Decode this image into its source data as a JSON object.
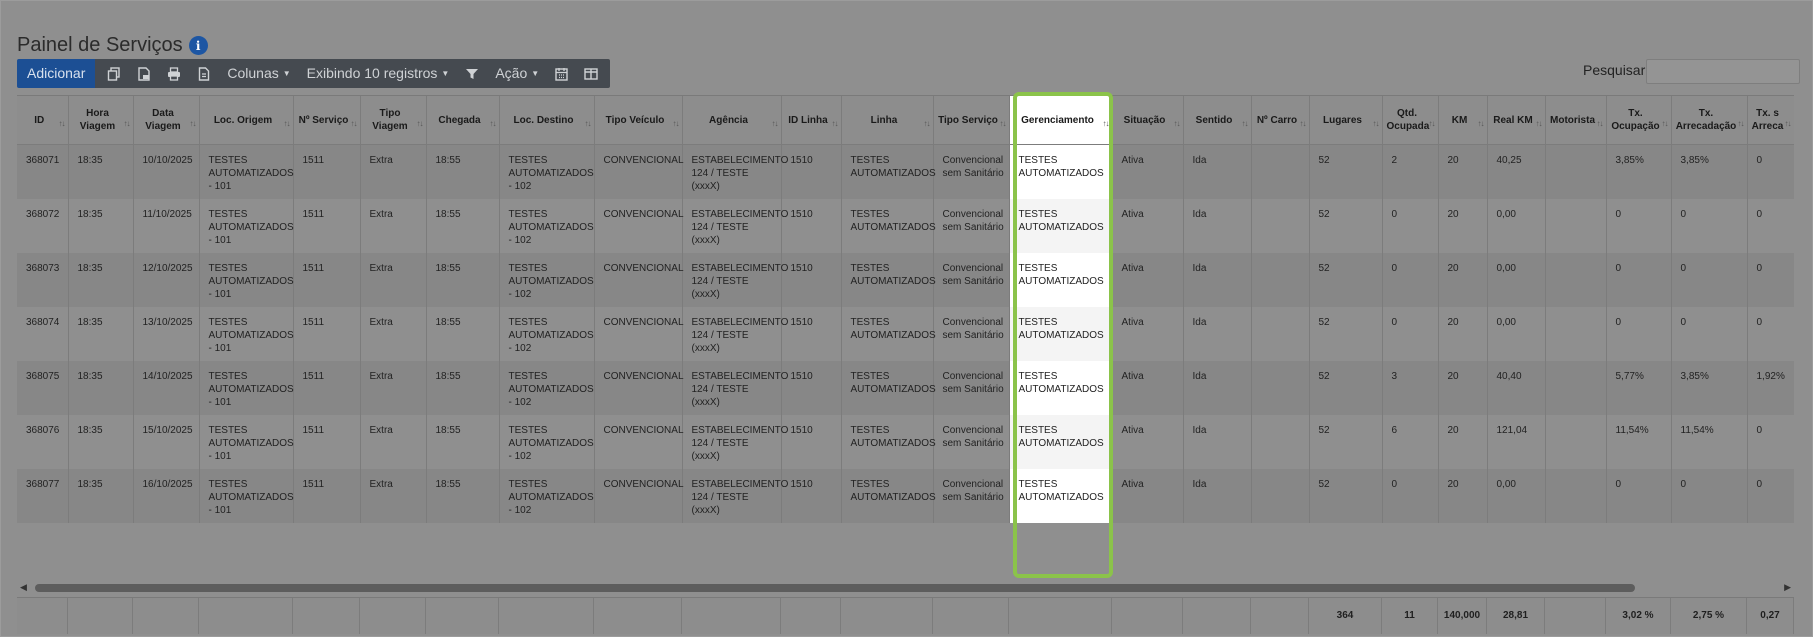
{
  "page": {
    "title": "Painel de Serviços",
    "search_label": "Pesquisar",
    "search_value": ""
  },
  "toolbar": {
    "add_label": "Adicionar",
    "columns_label": "Colunas",
    "showing_label": "Exibindo 10 registros",
    "action_label": "Ação"
  },
  "colors": {
    "highlight": "#8bc34a",
    "primary": "#1c4f94"
  },
  "table": {
    "columns": [
      "ID",
      "Hora Viagem",
      "Data Viagem",
      "Loc. Origem",
      "Nº Serviço",
      "Tipo Viagem",
      "Chegada",
      "Loc. Destino",
      "Tipo Veículo",
      "Agência",
      "ID Linha",
      "Linha",
      "Tipo Serviço",
      "Gerenciamento",
      "Situação",
      "Sentido",
      "Nº Carro",
      "Lugares",
      "Qtd. Ocupada",
      "KM",
      "Real KM",
      "Motorista",
      "Tx. Ocupação",
      "Tx. Arrecadação",
      "Tx. s Arreca"
    ],
    "rows": [
      [
        "368071",
        "18:35",
        "10/10/2025",
        "TESTES AUTOMATIZADOS - 101",
        "1511",
        "Extra",
        "18:55",
        "TESTES AUTOMATIZADOS - 102",
        "CONVENCIONAL",
        "ESTABELECIMENTO 124 / TESTE (xxxX)",
        "1510",
        "TESTES AUTOMATIZADOS",
        "Convencional sem Sanitário",
        "TESTES AUTOMATIZADOS",
        "Ativa",
        "Ida",
        "",
        "52",
        "2",
        "20",
        "40,25",
        "",
        "3,85%",
        "3,85%",
        "0"
      ],
      [
        "368072",
        "18:35",
        "11/10/2025",
        "TESTES AUTOMATIZADOS - 101",
        "1511",
        "Extra",
        "18:55",
        "TESTES AUTOMATIZADOS - 102",
        "CONVENCIONAL",
        "ESTABELECIMENTO 124 / TESTE (xxxX)",
        "1510",
        "TESTES AUTOMATIZADOS",
        "Convencional sem Sanitário",
        "TESTES AUTOMATIZADOS",
        "Ativa",
        "Ida",
        "",
        "52",
        "0",
        "20",
        "0,00",
        "",
        "0",
        "0",
        "0"
      ],
      [
        "368073",
        "18:35",
        "12/10/2025",
        "TESTES AUTOMATIZADOS - 101",
        "1511",
        "Extra",
        "18:55",
        "TESTES AUTOMATIZADOS - 102",
        "CONVENCIONAL",
        "ESTABELECIMENTO 124 / TESTE (xxxX)",
        "1510",
        "TESTES AUTOMATIZADOS",
        "Convencional sem Sanitário",
        "TESTES AUTOMATIZADOS",
        "Ativa",
        "Ida",
        "",
        "52",
        "0",
        "20",
        "0,00",
        "",
        "0",
        "0",
        "0"
      ],
      [
        "368074",
        "18:35",
        "13/10/2025",
        "TESTES AUTOMATIZADOS - 101",
        "1511",
        "Extra",
        "18:55",
        "TESTES AUTOMATIZADOS - 102",
        "CONVENCIONAL",
        "ESTABELECIMENTO 124 / TESTE (xxxX)",
        "1510",
        "TESTES AUTOMATIZADOS",
        "Convencional sem Sanitário",
        "TESTES AUTOMATIZADOS",
        "Ativa",
        "Ida",
        "",
        "52",
        "0",
        "20",
        "0,00",
        "",
        "0",
        "0",
        "0"
      ],
      [
        "368075",
        "18:35",
        "14/10/2025",
        "TESTES AUTOMATIZADOS - 101",
        "1511",
        "Extra",
        "18:55",
        "TESTES AUTOMATIZADOS - 102",
        "CONVENCIONAL",
        "ESTABELECIMENTO 124 / TESTE (xxxX)",
        "1510",
        "TESTES AUTOMATIZADOS",
        "Convencional sem Sanitário",
        "TESTES AUTOMATIZADOS",
        "Ativa",
        "Ida",
        "",
        "52",
        "3",
        "20",
        "40,40",
        "",
        "5,77%",
        "3,85%",
        "1,92%"
      ],
      [
        "368076",
        "18:35",
        "15/10/2025",
        "TESTES AUTOMATIZADOS - 101",
        "1511",
        "Extra",
        "18:55",
        "TESTES AUTOMATIZADOS - 102",
        "CONVENCIONAL",
        "ESTABELECIMENTO 124 / TESTE (xxxX)",
        "1510",
        "TESTES AUTOMATIZADOS",
        "Convencional sem Sanitário",
        "TESTES AUTOMATIZADOS",
        "Ativa",
        "Ida",
        "",
        "52",
        "6",
        "20",
        "121,04",
        "",
        "11,54%",
        "11,54%",
        "0"
      ],
      [
        "368077",
        "18:35",
        "16/10/2025",
        "TESTES AUTOMATIZADOS - 101",
        "1511",
        "Extra",
        "18:55",
        "TESTES AUTOMATIZADOS - 102",
        "CONVENCIONAL",
        "ESTABELECIMENTO 124 / TESTE (xxxX)",
        "1510",
        "TESTES AUTOMATIZADOS",
        "Convencional sem Sanitário",
        "TESTES AUTOMATIZADOS",
        "Ativa",
        "Ida",
        "",
        "52",
        "0",
        "20",
        "0,00",
        "",
        "0",
        "0",
        "0"
      ]
    ],
    "totals": [
      "",
      "",
      "",
      "",
      "",
      "",
      "",
      "",
      "",
      "",
      "",
      "",
      "",
      "",
      "",
      "",
      "",
      "364",
      "11",
      "140,000",
      "28,81",
      "",
      "3,02 %",
      "2,75 %",
      "0,27"
    ]
  }
}
